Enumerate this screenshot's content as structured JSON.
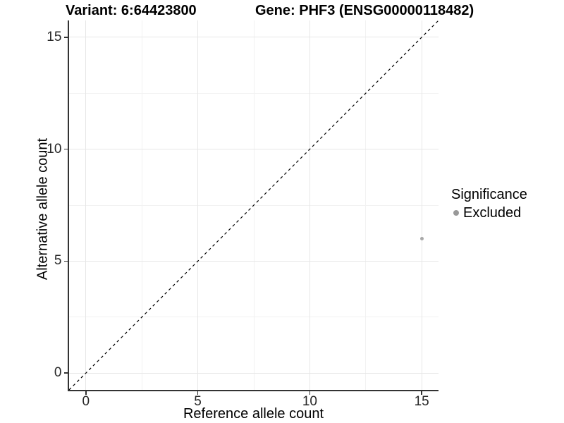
{
  "chart_data": {
    "type": "scatter",
    "title_left": "Variant: 6:64423800",
    "title_right": "Gene: PHF3 (ENSG00000118482)",
    "xlabel": "Reference allele count",
    "ylabel": "Alternative allele count",
    "xlim": [
      -0.75,
      15.75
    ],
    "ylim": [
      -0.75,
      15.75
    ],
    "xticks": [
      0,
      5,
      10,
      15
    ],
    "yticks": [
      0,
      5,
      10,
      15
    ],
    "minor_ticks": [
      2.5,
      7.5,
      12.5
    ],
    "grid": "major and minor gridlines, no panel border, left/bottom axis lines only",
    "points": [
      {
        "x": 15,
        "y": 6,
        "series": "Excluded"
      }
    ],
    "reference_line": {
      "style": "dashed",
      "slope": 1,
      "intercept": 0,
      "description": "y = x identity line"
    },
    "legend": {
      "title": "Significance",
      "position": "right",
      "entries": [
        {
          "label": "Excluded",
          "marker": "circle"
        }
      ]
    }
  },
  "colors": {
    "background": "#ffffff",
    "axis_line": "#333333",
    "tick_text": "#262626",
    "grid_major": "#e7e7e7",
    "grid_minor": "#f2f2f2",
    "point": "#a8a8a8",
    "legend_key": "#999999",
    "dashed_line": "#000000"
  }
}
